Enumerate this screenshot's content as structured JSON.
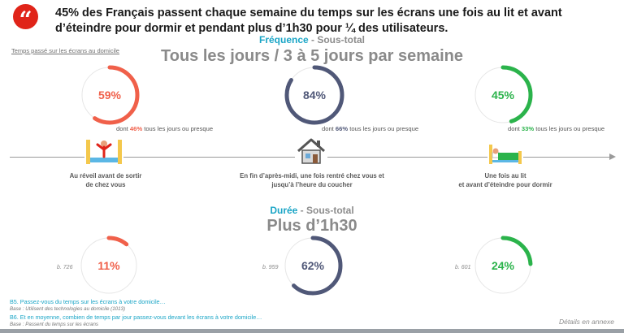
{
  "header": {
    "quote_glyph": "“",
    "headline": "45% des Français passent chaque semaine du temps sur les écrans une fois au lit et avant d’éteindre pour dormir et pendant plus d’1h30 pour ¼ des utilisateurs."
  },
  "frequency": {
    "section_accent": "Fréquence",
    "section_suffix": " - Sous-total",
    "title": "Tous les jours / 3 à 5 jours par semaine",
    "side_caption": "Temps passé sur les écrans au domicile"
  },
  "duration": {
    "section_accent": "Durée",
    "section_suffix": " - Sous-total",
    "title": "Plus d’1h30"
  },
  "chart_data": [
    {
      "type": "donut",
      "title": "Tous les jours / 3 à 5 jours par semaine",
      "categories": [
        "Au réveil avant de sortir de chez vous",
        "En fin d’après-midi, une fois rentré chez vous et jusqu’à l’heure du coucher",
        "Une fois au lit et avant d’éteindre pour dormir"
      ],
      "values": [
        59,
        84,
        45
      ],
      "labels": [
        "59%",
        "84%",
        "45%"
      ],
      "colors": [
        "#f0604a",
        "#505878",
        "#2bb34b"
      ],
      "sub_values": [
        46,
        66,
        33
      ],
      "sub_notes": [
        {
          "prefix": "dont ",
          "value": "46%",
          "suffix": " tous les jours ou presque"
        },
        {
          "prefix": "dont ",
          "value": "66%",
          "suffix": " tous les jours ou presque"
        },
        {
          "prefix": "dont ",
          "value": "33%",
          "suffix": " tous les jours ou presque"
        }
      ]
    },
    {
      "type": "donut",
      "title": "Plus d’1h30",
      "categories": [
        "Au réveil avant de sortir de chez vous",
        "En fin d’après-midi, une fois rentré chez vous et jusqu’à l’heure du coucher",
        "Une fois au lit et avant d’éteindre pour dormir"
      ],
      "values": [
        11,
        62,
        24
      ],
      "labels": [
        "11%",
        "62%",
        "24%"
      ],
      "colors": [
        "#f0604a",
        "#505878",
        "#2bb34b"
      ],
      "bases": [
        "b. 726",
        "b. 959",
        "b. 601"
      ]
    }
  ],
  "stages": [
    {
      "icon": "waking-person-icon",
      "label_line1": "Au réveil avant de sortir",
      "label_line2": "de chez vous"
    },
    {
      "icon": "house-icon",
      "label_line1": "En fin d’après-midi, une fois rentré chez vous et",
      "label_line2": "jusqu’à l’heure du coucher"
    },
    {
      "icon": "person-in-bed-icon",
      "label_line1": "Une fois au lit",
      "label_line2": "et avant d’éteindre pour dormir"
    }
  ],
  "footnotes": {
    "q1": "B5. Passez-vous du temps sur les écrans à votre domicile…",
    "b1": "Base : Utilisent des technologies au domicile (1013)",
    "q2": "B6. Et en moyenne, combien de temps par jour passez-vous devant les écrans à votre domicile…",
    "b2": "Base : Passent du temps sur les écrans"
  },
  "details_link": "Détails en annexe",
  "colors": {
    "accent": "#1aa5c6",
    "brand_red": "#e02419",
    "track": "#e6e6e6"
  }
}
